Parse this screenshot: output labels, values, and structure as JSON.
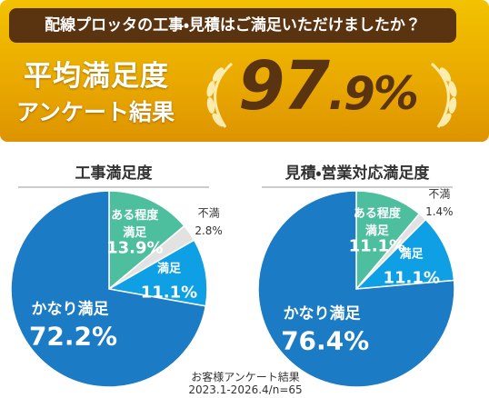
{
  "banner": {
    "question": "配線プロッタの工事・見積はご満足いただけましたか？",
    "headline": "平均満足度",
    "subheadline": "アンケート結果",
    "average": "97.9%"
  },
  "chart_data": [
    {
      "type": "pie",
      "title": "工事満足度",
      "categories": [
        "ある程度満足",
        "不満",
        "満足",
        "かなり満足"
      ],
      "values": [
        13.9,
        2.8,
        11.1,
        72.2
      ],
      "value_labels": [
        "13.9%",
        "2.8%",
        "11.1%",
        "72.2%"
      ],
      "colors": [
        "#4dbf9f",
        "#e2e2e2",
        "#0f9fe4",
        "#1b7bc4"
      ]
    },
    {
      "type": "pie",
      "title": "見積・営業対応満足度",
      "categories": [
        "ある程度満足",
        "不満",
        "満足",
        "かなり満足"
      ],
      "values": [
        11.1,
        1.4,
        11.1,
        76.4
      ],
      "value_labels": [
        "11.1%",
        "1.4%",
        "11.1%",
        "76.4%"
      ],
      "colors": [
        "#4dbf9f",
        "#e2e2e2",
        "#0f9fe4",
        "#1b7bc4"
      ]
    }
  ],
  "footnote": [
    "お客様アンケート結果",
    "2023.1-2026.4/n=65"
  ]
}
